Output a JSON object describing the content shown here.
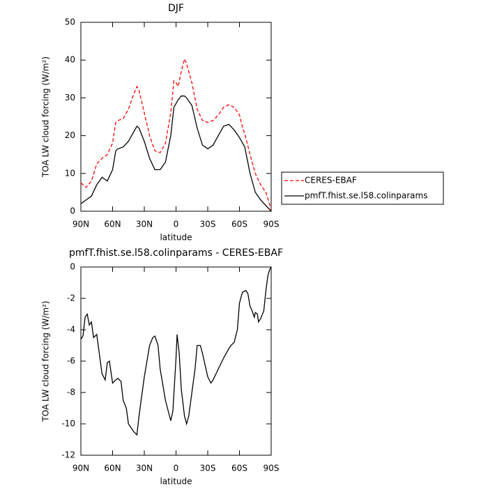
{
  "chart_data": [
    {
      "type": "line",
      "title": "DJF",
      "xlabel": "latitude",
      "ylabel": "TOA LW cloud forcing (W/m²)",
      "x": [
        90,
        85,
        80,
        75,
        70,
        65,
        60,
        57,
        55,
        50,
        45,
        40,
        37,
        35,
        30,
        25,
        20,
        15,
        10,
        5,
        2,
        0,
        -2,
        -5,
        -8,
        -10,
        -15,
        -20,
        -25,
        -30,
        -35,
        -40,
        -45,
        -50,
        -55,
        -60,
        -63,
        -65,
        -70,
        -75,
        -80,
        -85,
        -90
      ],
      "series": [
        {
          "name": "CERES-EBAF",
          "color": "#ff0000",
          "linestyle": "dashed",
          "values": [
            7.5,
            6.3,
            8,
            12.5,
            14,
            15,
            18,
            23.5,
            24,
            24.5,
            27,
            31,
            33,
            32,
            26,
            20,
            16,
            15.5,
            18,
            26,
            34.5,
            34,
            33,
            37,
            40.3,
            39,
            34,
            27,
            24,
            23.5,
            24,
            25.5,
            27.5,
            28.2,
            27.5,
            25.5,
            22,
            20.5,
            15,
            10,
            7,
            5,
            0.5
          ]
        },
        {
          "name": "pmfT.fhist.se.l58.colinparams",
          "color": "#000000",
          "linestyle": "solid",
          "values": [
            2,
            3,
            4,
            7,
            9,
            8,
            11,
            16,
            16.5,
            17,
            18.5,
            21,
            22.5,
            22,
            18.5,
            14,
            11,
            11,
            13,
            20,
            27.5,
            28.5,
            29.5,
            30.5,
            30.5,
            30,
            28,
            22,
            17.5,
            16.5,
            17.5,
            20,
            22.5,
            23,
            21.5,
            19.5,
            18,
            17,
            10,
            5,
            3,
            1.5,
            0
          ]
        }
      ],
      "xlim": [
        90,
        -90
      ],
      "xticks": [
        {
          "value": 90,
          "label": "90N"
        },
        {
          "value": 60,
          "label": "60N"
        },
        {
          "value": 30,
          "label": "30N"
        },
        0,
        {
          "value": -30,
          "label": "30S"
        },
        {
          "value": -60,
          "label": "60S"
        },
        {
          "value": -90,
          "label": "90S"
        }
      ],
      "ylim": [
        0,
        50
      ],
      "yticks": [
        0,
        10,
        20,
        30,
        40,
        50
      ],
      "legend": "right"
    },
    {
      "type": "line",
      "title": "pmfT.fhist.se.l58.colinparams - CERES-EBAF",
      "xlabel": "latitude",
      "ylabel": "TOA LW cloud forcing (W/m²)",
      "x": [
        90,
        88,
        86,
        84,
        82,
        80,
        78,
        75,
        72,
        70,
        67,
        65,
        63,
        60,
        57,
        55,
        52,
        50,
        47,
        45,
        40,
        37,
        35,
        30,
        25,
        22,
        20,
        17,
        15,
        10,
        5,
        3,
        0,
        -1,
        -3,
        -5,
        -8,
        -10,
        -12,
        -15,
        -18,
        -20,
        -23,
        -25,
        -30,
        -33,
        -35,
        -40,
        -45,
        -50,
        -52,
        -55,
        -58,
        -60,
        -62,
        -63,
        -66,
        -68,
        -70,
        -72,
        -74,
        -75,
        -77,
        -78,
        -80,
        -83,
        -85,
        -87,
        -89,
        -90
      ],
      "series": [
        {
          "color": "#000000",
          "linestyle": "solid",
          "values": [
            -4.6,
            -4.4,
            -3.2,
            -3.0,
            -3.7,
            -3.5,
            -4.5,
            -4.3,
            -5.8,
            -6.8,
            -7.2,
            -6.1,
            -6.0,
            -7.4,
            -7.2,
            -7.1,
            -7.3,
            -8.5,
            -9.0,
            -10.0,
            -10.5,
            -10.7,
            -9.5,
            -7.0,
            -5.0,
            -4.5,
            -4.4,
            -5.0,
            -6.5,
            -8.5,
            -9.8,
            -9.2,
            -5.8,
            -4.3,
            -5.5,
            -7.8,
            -9.5,
            -10.0,
            -9.5,
            -8.0,
            -6.5,
            -5.0,
            -5.0,
            -5.5,
            -7.0,
            -7.4,
            -7.2,
            -6.5,
            -5.8,
            -5.2,
            -5.0,
            -4.8,
            -4.0,
            -2.3,
            -1.8,
            -1.6,
            -1.5,
            -1.7,
            -2.5,
            -2.8,
            -3.2,
            -2.9,
            -3.0,
            -3.5,
            -3.3,
            -2.8,
            -1.5,
            -0.5,
            -0.1,
            0
          ]
        }
      ],
      "xlim": [
        90,
        -90
      ],
      "xticks": [
        {
          "value": 90,
          "label": "90N"
        },
        {
          "value": 60,
          "label": "60N"
        },
        {
          "value": 30,
          "label": "30N"
        },
        0,
        {
          "value": -30,
          "label": "30S"
        },
        {
          "value": -60,
          "label": "60S"
        },
        {
          "value": -90,
          "label": "90S"
        }
      ],
      "ylim": [
        -12,
        0
      ],
      "yticks": [
        -12,
        -10,
        -8,
        -6,
        -4,
        -2,
        0
      ]
    }
  ]
}
